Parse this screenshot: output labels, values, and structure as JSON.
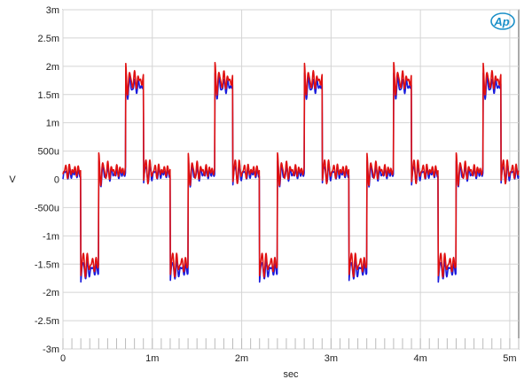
{
  "chart_data": {
    "type": "line",
    "title": "",
    "xlabel": "sec",
    "ylabel": "V",
    "xlim": [
      0,
      0.0051
    ],
    "ylim": [
      -0.003,
      0.003
    ],
    "grid": true,
    "x_ticks": [
      {
        "value": 0,
        "label": "0"
      },
      {
        "value": 0.001,
        "label": "1m"
      },
      {
        "value": 0.002,
        "label": "2m"
      },
      {
        "value": 0.003,
        "label": "3m"
      },
      {
        "value": 0.004,
        "label": "4m"
      },
      {
        "value": 0.005,
        "label": "5m"
      }
    ],
    "y_ticks": [
      {
        "value": 0.003,
        "label": "3m"
      },
      {
        "value": 0.0025,
        "label": "2.5m"
      },
      {
        "value": 0.002,
        "label": "2m"
      },
      {
        "value": 0.0015,
        "label": "1.5m"
      },
      {
        "value": 0.001,
        "label": "1m"
      },
      {
        "value": 0.0005,
        "label": "500u"
      },
      {
        "value": 0,
        "label": "0"
      },
      {
        "value": -0.0005,
        "label": "-500u"
      },
      {
        "value": -0.001,
        "label": "-1m"
      },
      {
        "value": -0.0015,
        "label": "-1.5m"
      },
      {
        "value": -0.002,
        "label": "-2m"
      },
      {
        "value": -0.0025,
        "label": "-2.5m"
      },
      {
        "value": -0.003,
        "label": "-3m"
      }
    ],
    "series": [
      {
        "color": "#1a1adc",
        "period": 0.001,
        "phase": 0.0002,
        "levels": [
          -0.0016,
          0.0001,
          0.00165,
          0.0001,
          -0.0016
        ],
        "step_fractions": [
          0.0,
          0.2,
          0.5,
          0.7,
          1.0
        ],
        "ringing_amplitude": 0.00022,
        "ringing_frequency_hz": 20000
      },
      {
        "color": "#e01010",
        "period": 0.001,
        "phase": 0.0002,
        "levels": [
          -0.0015,
          0.00015,
          0.00175,
          0.00015,
          -0.0015
        ],
        "step_fractions": [
          0.0,
          0.2,
          0.5,
          0.7,
          1.0
        ],
        "ringing_amplitude": 0.00026,
        "ringing_frequency_hz": 20000
      }
    ]
  },
  "logo": {
    "text": "Ap",
    "color": "#1a8fc8"
  }
}
